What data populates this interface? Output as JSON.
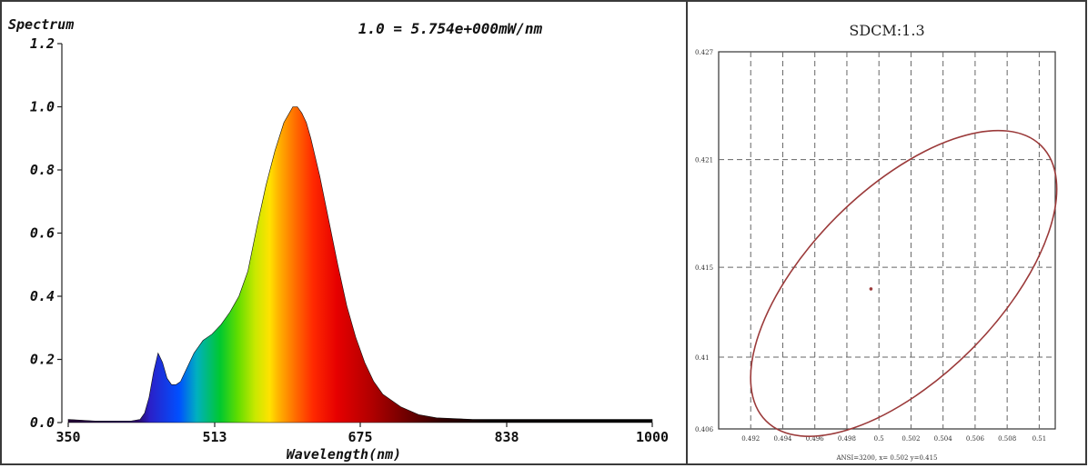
{
  "chart_data": [
    {
      "type": "area",
      "ylabel": "Spectrum",
      "header": "1.0 = 5.754e+000mW/nm",
      "xlabel": "Wavelength(nm)",
      "xlim": [
        350,
        1000
      ],
      "ylim": [
        0,
        1.2
      ],
      "x_ticks": [
        "350",
        "513",
        "675",
        "838",
        "1000"
      ],
      "y_ticks": [
        "0.0",
        "0.2",
        "0.4",
        "0.6",
        "0.8",
        "1.0",
        "1.2"
      ],
      "series": [
        {
          "x": [
            350,
            380,
            400,
            420,
            430,
            435,
            440,
            445,
            450,
            455,
            460,
            465,
            470,
            475,
            480,
            490,
            500,
            510,
            520,
            530,
            540,
            550,
            560,
            570,
            580,
            590,
            600,
            605,
            610,
            615,
            620,
            625,
            630,
            640,
            650,
            660,
            670,
            680,
            690,
            700,
            720,
            740,
            760,
            800,
            850,
            900,
            950,
            1000
          ],
          "values": [
            0.01,
            0.005,
            0.005,
            0.005,
            0.01,
            0.03,
            0.08,
            0.16,
            0.22,
            0.19,
            0.14,
            0.12,
            0.12,
            0.13,
            0.16,
            0.22,
            0.26,
            0.28,
            0.31,
            0.35,
            0.4,
            0.48,
            0.62,
            0.75,
            0.86,
            0.95,
            1.0,
            1.0,
            0.98,
            0.95,
            0.9,
            0.84,
            0.78,
            0.64,
            0.5,
            0.37,
            0.27,
            0.19,
            0.13,
            0.09,
            0.05,
            0.025,
            0.015,
            0.01,
            0.01,
            0.01,
            0.01,
            0.01
          ]
        }
      ]
    },
    {
      "type": "scatter",
      "title": "SDCM:1.3",
      "caption": "ANSI=3200, x= 0.502 y=0.415",
      "xlim": [
        0.49,
        0.511
      ],
      "ylim": [
        0.406,
        0.427
      ],
      "x_ticks": [
        "0.492",
        "0.494",
        "0.496",
        "0.498",
        "0.5",
        "0.502",
        "0.504",
        "0.506",
        "0.508",
        "0.51"
      ],
      "y_ticks": [
        "0.427",
        "0.421",
        "0.415",
        "0.41",
        "0.406"
      ],
      "point": {
        "x": 0.4995,
        "y": 0.4138
      },
      "ellipse_color": "#9b3a3a"
    }
  ]
}
